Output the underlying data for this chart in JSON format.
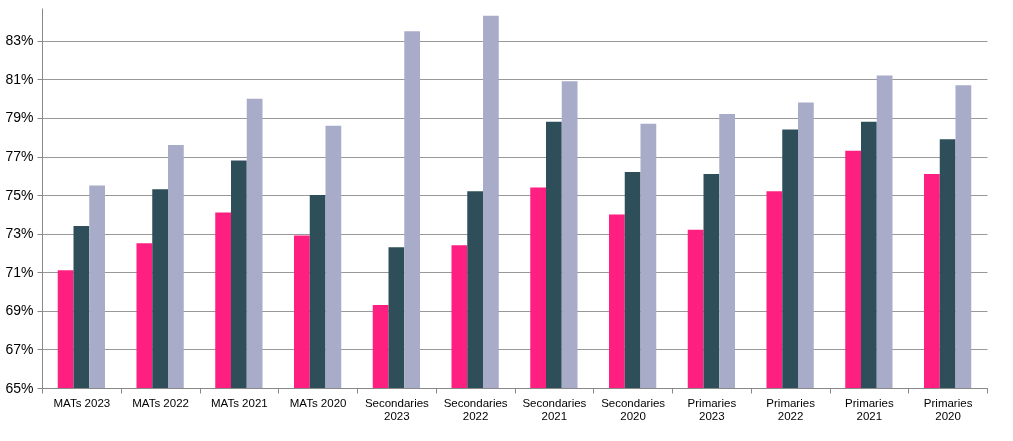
{
  "chart_data": {
    "type": "bar",
    "categories": [
      "MATs 2023",
      "MATs 2022",
      "MATs 2021",
      "MATs 2020",
      "Secondaries 2023",
      "Secondaries 2022",
      "Secondaries 2021",
      "Secondaries 2020",
      "Primaries 2023",
      "Primaries 2022",
      "Primaries 2021",
      "Primaries 2020"
    ],
    "series": [
      {
        "color": "#ff1f80",
        "values": [
          71.1,
          72.5,
          74.1,
          72.9,
          69.3,
          72.4,
          75.4,
          74.0,
          73.2,
          75.2,
          77.3,
          76.1
        ]
      },
      {
        "color": "#2e4f5a",
        "values": [
          73.4,
          75.3,
          76.8,
          75.0,
          72.3,
          75.2,
          78.8,
          76.2,
          76.1,
          78.4,
          78.8,
          77.9
        ]
      },
      {
        "color": "#a8acc8",
        "values": [
          75.5,
          77.6,
          80.0,
          78.6,
          83.5,
          84.3,
          80.9,
          78.7,
          79.2,
          79.8,
          81.2,
          80.7
        ]
      }
    ],
    "ylim": [
      65,
      84.7
    ],
    "yticks": [
      {
        "value": 65,
        "label": "65%"
      },
      {
        "value": 67,
        "label": "67%"
      },
      {
        "value": 69,
        "label": "69%"
      },
      {
        "value": 71,
        "label": "71%"
      },
      {
        "value": 73,
        "label": "73%"
      },
      {
        "value": 75,
        "label": "75%"
      },
      {
        "value": 77,
        "label": "77%"
      },
      {
        "value": 79,
        "label": "79%"
      },
      {
        "value": 81,
        "label": "81%"
      },
      {
        "value": 83,
        "label": "83%"
      }
    ],
    "grid": "y"
  }
}
